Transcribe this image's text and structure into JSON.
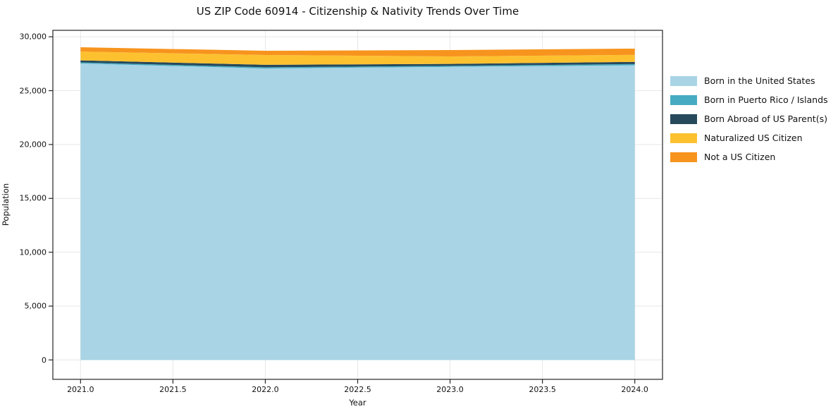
{
  "figure": {
    "title": "US ZIP Code 60914 - Citizenship & Nativity Trends Over Time"
  },
  "chart_data": {
    "type": "area",
    "stacked": true,
    "title": "US ZIP Code 60914 - Citizenship & Nativity Trends Over Time",
    "xlabel": "Year",
    "ylabel": "Population",
    "x": [
      2021,
      2022,
      2023,
      2024
    ],
    "series": [
      {
        "name": "Born in the United States",
        "color": "#a8d4e6",
        "values": [
          27520,
          27060,
          27210,
          27350
        ]
      },
      {
        "name": "Born in Puerto Rico / Islands",
        "color": "#46abc2",
        "values": [
          100,
          110,
          90,
          120
        ]
      },
      {
        "name": "Born Abroad of US Parent(s)",
        "color": "#26495c",
        "values": [
          190,
          230,
          180,
          200
        ]
      },
      {
        "name": "Naturalized US Citizen",
        "color": "#fdc130",
        "values": [
          820,
          910,
          700,
          650
        ]
      },
      {
        "name": "Not a US Citizen",
        "color": "#f7941e",
        "values": [
          400,
          390,
          590,
          580
        ]
      }
    ],
    "x_ticks": {
      "values": [
        2021.0,
        2021.5,
        2022.0,
        2022.5,
        2023.0,
        2023.5,
        2024.0
      ],
      "labels": [
        "2021.0",
        "2021.5",
        "2022.0",
        "2022.5",
        "2023.0",
        "2023.5",
        "2024.0"
      ]
    },
    "y_ticks": {
      "values": [
        0,
        5000,
        10000,
        15000,
        20000,
        25000,
        30000
      ],
      "labels": [
        "0",
        "5,000",
        "10,000",
        "15,000",
        "20,000",
        "25,000",
        "30,000"
      ]
    },
    "xlim": [
      2020.85,
      2024.15
    ],
    "ylim": [
      -1800,
      30600
    ],
    "grid": true,
    "grid_color": "#e7e7e7",
    "spine_color": "#262626",
    "legend_position": "right"
  }
}
